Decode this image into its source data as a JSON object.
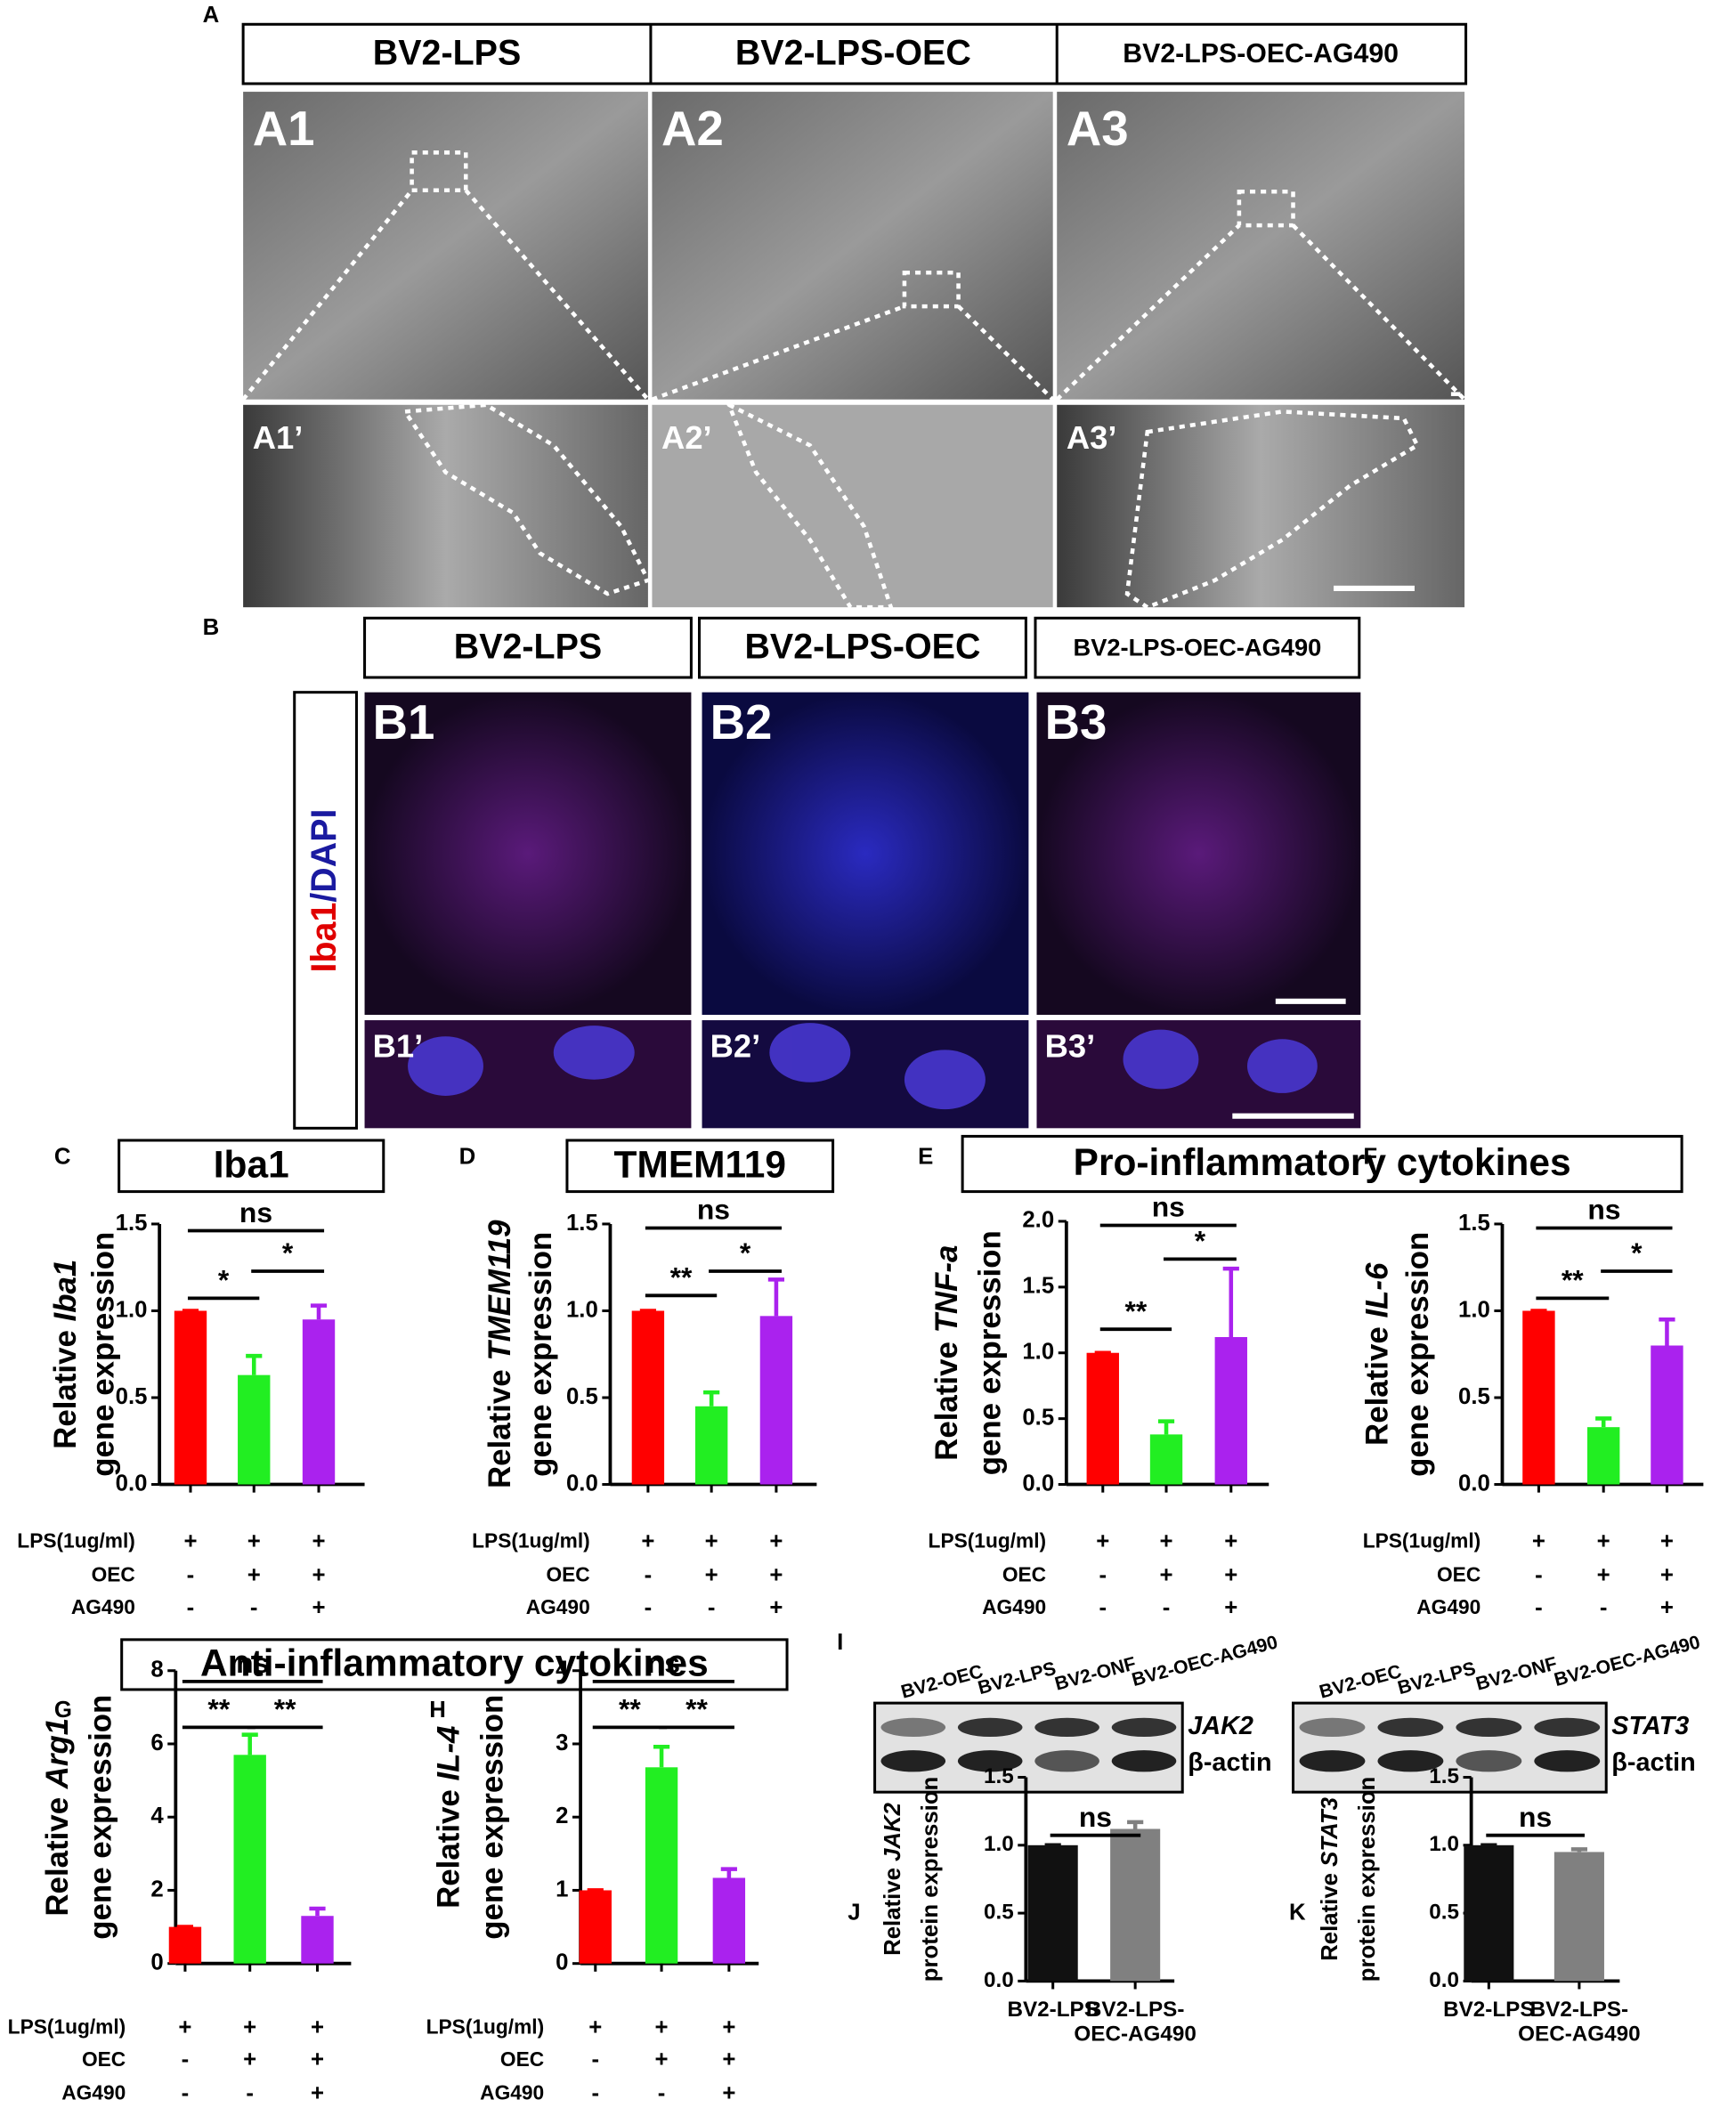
{
  "panel_a": {
    "letter": "A",
    "headers": [
      "BV2-LPS",
      "BV2-LPS-OEC",
      "BV2-LPS-OEC-AG490"
    ],
    "images": [
      "A1",
      "A2",
      "A3"
    ],
    "insets": [
      "A1’",
      "A2’",
      "A3’"
    ]
  },
  "panel_b": {
    "letter": "B",
    "headers": [
      "BV2-LPS",
      "BV2-LPS-OEC",
      "BV2-LPS-OEC-AG490"
    ],
    "stain_red": "Iba1",
    "stain_blue": "/DAPI",
    "images": [
      "B1",
      "B2",
      "B3"
    ],
    "insets": [
      "B1’",
      "B2’",
      "B3’"
    ]
  },
  "group_titles": [
    "Pro-inflammatory cytokines",
    "Anti-inflammatory cytokines"
  ],
  "panel_i": {
    "letter": "I",
    "blots": [
      {
        "lanes": [
          "BV2-OEC",
          "BV2-LPS",
          "BV2-ONF",
          "BV2-OEC-AG490"
        ],
        "bands": [
          "JAK2",
          "β-actin"
        ]
      },
      {
        "lanes": [
          "BV2-OEC",
          "BV2-LPS",
          "BV2-ONF",
          "BV2-OEC-AG490"
        ],
        "bands": [
          "STAT3",
          "β-actin"
        ]
      }
    ]
  },
  "chart_data": [
    {
      "panel": "C",
      "type": "bar",
      "title": "Iba1",
      "ylabel": "Relative ",
      "ylabel_gene": "Iba1",
      "ylabel_line2": "gene expression",
      "values": [
        1.0,
        0.63,
        0.95
      ],
      "errors": [
        0,
        0.11,
        0.08
      ],
      "colors": [
        "#ff0000",
        "#22ee22",
        "#aa22ee"
      ],
      "ylim": [
        0,
        1.5
      ],
      "yticks": [
        {
          "value": 0,
          "label": "0.0"
        },
        0.5,
        {
          "value": 1,
          "label": "1.0"
        },
        1.5
      ],
      "significance": [
        "ns",
        "*",
        "*"
      ],
      "conditions": [
        {
          "label": "LPS(1ug/ml)",
          "marks": [
            "+",
            "+",
            "+"
          ]
        },
        {
          "label": "OEC",
          "marks": [
            "-",
            "+",
            "+"
          ]
        },
        {
          "label": "AG490",
          "marks": [
            "-",
            "-",
            "+"
          ]
        }
      ]
    },
    {
      "panel": "D",
      "type": "bar",
      "title": "TMEM119",
      "ylabel": "Relative ",
      "ylabel_gene": "TMEM119",
      "ylabel_line2": "gene expression",
      "values": [
        1.0,
        0.45,
        0.97
      ],
      "errors": [
        0,
        0.08,
        0.21
      ],
      "colors": [
        "#ff0000",
        "#22ee22",
        "#aa22ee"
      ],
      "ylim": [
        0,
        1.5
      ],
      "yticks": [
        {
          "value": 0,
          "label": "0.0"
        },
        0.5,
        {
          "value": 1,
          "label": "1.0"
        },
        1.5
      ],
      "significance": [
        "ns",
        "**",
        "*"
      ],
      "conditions": [
        {
          "label": "LPS(1ug/ml)",
          "marks": [
            "+",
            "+",
            "+"
          ]
        },
        {
          "label": "OEC",
          "marks": [
            "-",
            "+",
            "+"
          ]
        },
        {
          "label": "AG490",
          "marks": [
            "-",
            "-",
            "+"
          ]
        }
      ]
    },
    {
      "panel": "E",
      "type": "bar",
      "ylabel": "Relative ",
      "ylabel_gene": "TNF-a",
      "ylabel_line2": "gene expression",
      "values": [
        1.0,
        0.38,
        1.12
      ],
      "errors": [
        0,
        0.1,
        0.52
      ],
      "colors": [
        "#ff0000",
        "#22ee22",
        "#aa22ee"
      ],
      "ylim": [
        0,
        2
      ],
      "yticks": [
        {
          "value": 0,
          "label": "0.0"
        },
        0.5,
        {
          "value": 1,
          "label": "1.0"
        },
        1.5,
        {
          "value": 2,
          "label": "2.0"
        }
      ],
      "significance": [
        "ns",
        "**",
        "*"
      ],
      "conditions": [
        {
          "label": "LPS(1ug/ml)",
          "marks": [
            "+",
            "+",
            "+"
          ]
        },
        {
          "label": "OEC",
          "marks": [
            "-",
            "+",
            "+"
          ]
        },
        {
          "label": "AG490",
          "marks": [
            "-",
            "-",
            "+"
          ]
        }
      ]
    },
    {
      "panel": "F",
      "type": "bar",
      "ylabel": "Relative ",
      "ylabel_gene": "IL-6",
      "ylabel_line2": "gene expression",
      "values": [
        1.0,
        0.33,
        0.8
      ],
      "errors": [
        0,
        0.05,
        0.15
      ],
      "colors": [
        "#ff0000",
        "#22ee22",
        "#aa22ee"
      ],
      "ylim": [
        0,
        1.5
      ],
      "yticks": [
        {
          "value": 0,
          "label": "0.0"
        },
        0.5,
        {
          "value": 1,
          "label": "1.0"
        },
        1.5
      ],
      "significance": [
        "ns",
        "**",
        "*"
      ],
      "conditions": [
        {
          "label": "LPS(1ug/ml)",
          "marks": [
            "+",
            "+",
            "+"
          ]
        },
        {
          "label": "OEC",
          "marks": [
            "-",
            "+",
            "+"
          ]
        },
        {
          "label": "AG490",
          "marks": [
            "-",
            "-",
            "+"
          ]
        }
      ]
    },
    {
      "panel": "G",
      "type": "bar",
      "ylabel": "Relative ",
      "ylabel_gene": "Arg1",
      "ylabel_line2": "gene expression",
      "values": [
        1.0,
        5.7,
        1.3
      ],
      "errors": [
        0,
        0.55,
        0.2
      ],
      "colors": [
        "#ff0000",
        "#22ee22",
        "#aa22ee"
      ],
      "ylim": [
        0,
        8
      ],
      "yticks": [
        0,
        2,
        4,
        6,
        8
      ],
      "significance": [
        "ns",
        "**",
        "**"
      ],
      "conditions": [
        {
          "label": "LPS(1ug/ml)",
          "marks": [
            "+",
            "+",
            "+"
          ]
        },
        {
          "label": "OEC",
          "marks": [
            "-",
            "+",
            "+"
          ]
        },
        {
          "label": "AG490",
          "marks": [
            "-",
            "-",
            "+"
          ]
        }
      ]
    },
    {
      "panel": "H",
      "type": "bar",
      "ylabel": "Relative ",
      "ylabel_gene": "IL-4",
      "ylabel_line2": "gene expression",
      "values": [
        1.0,
        2.68,
        1.17
      ],
      "errors": [
        0,
        0.28,
        0.12
      ],
      "colors": [
        "#ff0000",
        "#22ee22",
        "#aa22ee"
      ],
      "ylim": [
        0,
        4
      ],
      "yticks": [
        0,
        1,
        2,
        3,
        4
      ],
      "significance": [
        "ns",
        "**",
        "**"
      ],
      "conditions": [
        {
          "label": "LPS(1ug/ml)",
          "marks": [
            "+",
            "+",
            "+"
          ]
        },
        {
          "label": "OEC",
          "marks": [
            "-",
            "+",
            "+"
          ]
        },
        {
          "label": "AG490",
          "marks": [
            "-",
            "-",
            "+"
          ]
        }
      ]
    },
    {
      "panel": "J",
      "type": "bar",
      "ylabel": "Relative ",
      "ylabel_gene": "JAK2",
      "ylabel_line2": "protein expression",
      "categories": [
        [
          "BV2-LPS"
        ],
        [
          "BV2-LPS-",
          "OEC-AG490"
        ]
      ],
      "values": [
        1.0,
        1.12
      ],
      "errors": [
        0,
        0.05
      ],
      "colors": [
        "#111111",
        "#808080"
      ],
      "ylim": [
        0,
        1.5
      ],
      "yticks": [
        {
          "value": 0,
          "label": "0.0"
        },
        0.5,
        {
          "value": 1,
          "label": "1.0"
        },
        1.5
      ],
      "significance": [
        "ns"
      ]
    },
    {
      "panel": "K",
      "type": "bar",
      "ylabel": "Relative ",
      "ylabel_gene": "STAT3",
      "ylabel_line2": "protein expression",
      "categories": [
        [
          "BV2-LPS"
        ],
        [
          "BV2-LPS-",
          "OEC-AG490"
        ]
      ],
      "values": [
        1.0,
        0.95
      ],
      "errors": [
        0,
        0.02
      ],
      "colors": [
        "#111111",
        "#808080"
      ],
      "ylim": [
        0,
        1.5
      ],
      "yticks": [
        {
          "value": 0,
          "label": "0.0"
        },
        0.5,
        {
          "value": 1,
          "label": "1.0"
        },
        1.5
      ],
      "significance": [
        "ns"
      ]
    }
  ]
}
